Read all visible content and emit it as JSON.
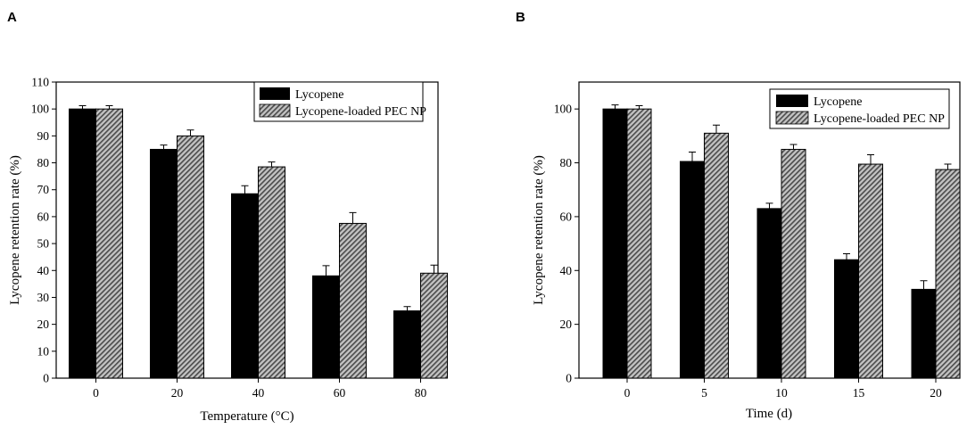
{
  "chart_data": [
    {
      "panel": "A",
      "type": "bar",
      "title": "",
      "xlabel": "Temperature (°C)",
      "ylabel": "Lycopene retention rate (%)",
      "categories": [
        "0",
        "20",
        "40",
        "60",
        "80"
      ],
      "ylim": [
        0,
        110
      ],
      "yticks": [
        0,
        10,
        20,
        30,
        40,
        50,
        60,
        70,
        80,
        90,
        100,
        110
      ],
      "legend_position": "top-right",
      "series": [
        {
          "name": "Lycopene",
          "fill": "solid",
          "color": "#000000",
          "values": [
            100,
            85,
            68.5,
            38,
            25
          ],
          "errors": [
            1.2,
            1.6,
            3,
            3.8,
            1.6
          ]
        },
        {
          "name": "Lycopene-loaded PEC NP",
          "fill": "hatched",
          "color": "#9a9a9a",
          "values": [
            100,
            90,
            78.5,
            57.5,
            39
          ],
          "errors": [
            1.2,
            2.2,
            1.8,
            4,
            3
          ]
        }
      ]
    },
    {
      "panel": "B",
      "type": "bar",
      "title": "",
      "xlabel": "Time (d)",
      "ylabel": "Lycopene retention rate (%)",
      "categories": [
        "0",
        "5",
        "10",
        "15",
        "20"
      ],
      "ylim": [
        0,
        110
      ],
      "yticks": [
        0,
        20,
        40,
        60,
        80,
        100
      ],
      "legend_position": "top-right",
      "series": [
        {
          "name": "Lycopene",
          "fill": "solid",
          "color": "#000000",
          "values": [
            100,
            80.5,
            63,
            44,
            33
          ],
          "errors": [
            1.5,
            3.5,
            2,
            2.2,
            3.2
          ]
        },
        {
          "name": "Lycopene-loaded PEC NP",
          "fill": "hatched",
          "color": "#9a9a9a",
          "values": [
            100,
            91,
            85,
            79.5,
            77.5
          ],
          "errors": [
            1.2,
            3,
            1.8,
            3.5,
            2
          ]
        }
      ]
    }
  ]
}
